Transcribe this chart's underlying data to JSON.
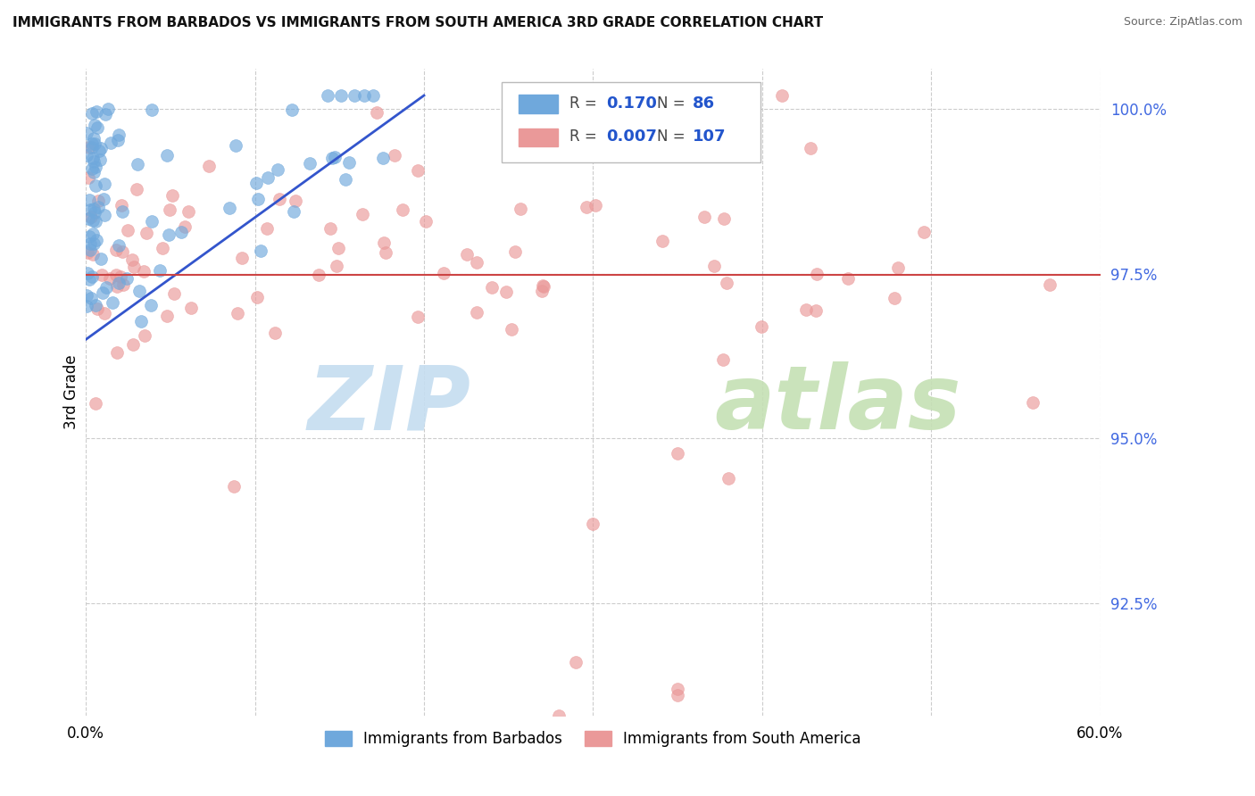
{
  "title": "IMMIGRANTS FROM BARBADOS VS IMMIGRANTS FROM SOUTH AMERICA 3RD GRADE CORRELATION CHART",
  "source": "Source: ZipAtlas.com",
  "ylabel": "3rd Grade",
  "x_label_bottom_left": "0.0%",
  "x_label_bottom_right": "60.0%",
  "y_axis_labels": [
    "100.0%",
    "97.5%",
    "95.0%",
    "92.5%"
  ],
  "y_axis_values": [
    1.0,
    0.975,
    0.95,
    0.925
  ],
  "xlim": [
    0.0,
    0.6
  ],
  "ylim": [
    0.908,
    1.006
  ],
  "legend_label_blue": "Immigrants from Barbados",
  "legend_label_pink": "Immigrants from South America",
  "R_blue": 0.17,
  "N_blue": 86,
  "R_pink": 0.007,
  "N_pink": 107,
  "blue_color": "#6fa8dc",
  "pink_color": "#ea9999",
  "trendline_blue_color": "#3355cc",
  "trendline_pink_color": "#cc4444",
  "blue_trendline_x": [
    0.0,
    0.2
  ],
  "blue_trendline_y": [
    0.965,
    1.002
  ],
  "pink_trendline_x": [
    0.0,
    0.6
  ],
  "pink_trendline_y": [
    0.9748,
    0.9748
  ],
  "watermark_zip_color": "#c5ddf0",
  "watermark_atlas_color": "#c5e0b4"
}
